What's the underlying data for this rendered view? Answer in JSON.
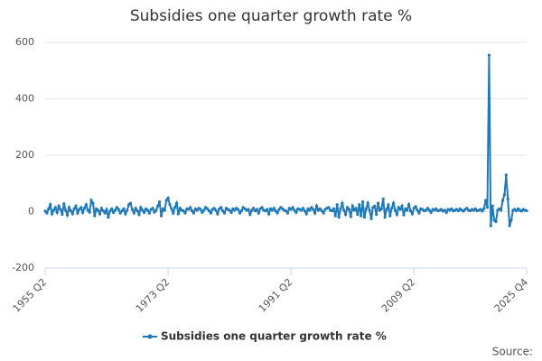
{
  "chart_data": {
    "type": "line",
    "title": "Subsidies one quarter growth rate %",
    "source": "Source:",
    "categories": [
      "1955 Q2",
      null,
      null,
      null,
      null,
      null,
      null,
      null,
      null,
      null,
      null,
      null,
      null,
      null,
      null,
      null,
      null,
      null,
      null,
      null,
      null,
      null,
      null,
      null,
      null,
      null,
      null,
      null,
      null,
      null,
      null,
      null,
      null,
      null,
      null,
      null,
      null,
      null,
      null,
      null,
      null,
      null,
      null,
      null,
      null,
      null,
      null,
      null,
      null,
      null,
      null,
      null,
      null,
      null,
      null,
      null,
      null,
      null,
      null,
      null,
      null,
      null,
      null,
      null,
      null,
      null,
      null,
      null,
      null,
      null,
      null,
      null,
      "1973 Q2",
      null,
      null,
      null,
      null,
      null,
      null,
      null,
      null,
      null,
      null,
      null,
      null,
      null,
      null,
      null,
      null,
      null,
      null,
      null,
      null,
      null,
      null,
      null,
      null,
      null,
      null,
      null,
      null,
      null,
      null,
      null,
      null,
      null,
      null,
      null,
      null,
      null,
      null,
      null,
      null,
      null,
      null,
      null,
      null,
      null,
      null,
      null,
      null,
      null,
      null,
      null,
      null,
      null,
      null,
      null,
      null,
      null,
      null,
      null,
      null,
      null,
      null,
      null,
      null,
      null,
      null,
      null,
      null,
      null,
      null,
      null,
      "1991 Q2",
      null,
      null,
      null,
      null,
      null,
      null,
      null,
      null,
      null,
      null,
      null,
      null,
      null,
      null,
      null,
      null,
      null,
      null,
      null,
      null,
      null,
      null,
      null,
      null,
      null,
      null,
      null,
      null,
      null,
      null,
      null,
      null,
      null,
      null,
      null,
      null,
      null,
      null,
      null,
      null,
      null,
      null,
      null,
      null,
      null,
      null,
      null,
      null,
      null,
      null,
      null,
      null,
      null,
      null,
      null,
      null,
      null,
      null,
      null,
      null,
      null,
      null,
      null,
      null,
      null,
      null,
      null,
      null,
      null,
      null,
      null,
      "2009 Q2",
      null,
      null,
      null,
      null,
      null,
      null,
      null,
      null,
      null,
      null,
      null,
      null,
      null,
      null,
      null,
      null,
      null,
      null,
      null,
      null,
      null,
      null,
      null,
      null,
      null,
      null,
      null,
      null,
      null,
      null,
      null,
      null,
      null,
      null,
      null,
      null,
      null,
      null,
      null,
      null,
      null,
      null,
      null,
      null,
      null,
      null,
      null,
      null,
      null,
      null,
      null,
      null,
      null,
      null,
      null,
      null,
      null,
      null,
      null,
      null,
      null,
      null,
      null,
      null,
      null,
      "2025 Q4"
    ],
    "series": [
      {
        "name": "Subsidies one quarter growth rate %",
        "color": "#1f78b8",
        "values": [
          2,
          -5,
          10,
          25,
          -8,
          5,
          15,
          -3,
          20,
          8,
          -10,
          28,
          5,
          -12,
          15,
          3,
          -8,
          10,
          20,
          -5,
          8,
          15,
          -3,
          12,
          25,
          5,
          -2,
          40,
          30,
          -15,
          10,
          5,
          -8,
          12,
          3,
          -5,
          8,
          -20,
          2,
          10,
          -3,
          5,
          15,
          8,
          -5,
          3,
          10,
          -8,
          5,
          25,
          30,
          8,
          -5,
          12,
          3,
          -10,
          15,
          5,
          -3,
          10,
          5,
          -5,
          8,
          12,
          -2,
          5,
          20,
          35,
          -15,
          10,
          5,
          40,
          48,
          25,
          10,
          -5,
          15,
          30,
          -8,
          12,
          5,
          3,
          -5,
          10,
          8,
          15,
          3,
          -5,
          10,
          5,
          12,
          8,
          -3,
          5,
          15,
          10,
          3,
          -5,
          8,
          12,
          5,
          -8,
          10,
          15,
          3,
          -5,
          12,
          8,
          5,
          -3,
          10,
          5,
          12,
          8,
          -5,
          3,
          15,
          10,
          5,
          8,
          -10,
          5,
          12,
          3,
          8,
          -5,
          10,
          15,
          5,
          3,
          8,
          -8,
          10,
          5,
          12,
          3,
          -5,
          8,
          15,
          10,
          5,
          3,
          -5,
          12,
          8,
          15,
          5,
          -3,
          10,
          8,
          5,
          12,
          3,
          -8,
          10,
          5,
          15,
          8,
          -5,
          20,
          5,
          10,
          3,
          -5,
          8,
          12,
          15,
          5,
          3,
          10,
          -15,
          25,
          -20,
          10,
          30,
          5,
          -10,
          15,
          8,
          -18,
          20,
          5,
          12,
          -10,
          25,
          -15,
          35,
          -20,
          10,
          30,
          5,
          -25,
          15,
          20,
          -10,
          30,
          5,
          10,
          45,
          -20,
          8,
          25,
          -15,
          12,
          30,
          5,
          -10,
          15,
          8,
          20,
          -12,
          10,
          5,
          25,
          3,
          -8,
          12,
          18,
          5,
          -5,
          10,
          8,
          3,
          5,
          12,
          5,
          -3,
          8,
          5,
          10,
          3,
          5,
          8,
          2,
          5,
          -3,
          8,
          5,
          10,
          3,
          5,
          8,
          3,
          10,
          5,
          2,
          8,
          12,
          5,
          3,
          8,
          5,
          10,
          3,
          5,
          8,
          2,
          10,
          40,
          15,
          555,
          -50,
          20,
          -30,
          -35,
          5,
          10,
          5,
          40,
          60,
          130,
          45,
          -50,
          -30,
          5,
          8,
          3,
          10,
          5,
          2,
          8,
          5,
          3
        ]
      }
    ],
    "ylim": [
      -200,
      600
    ],
    "yticks": [
      -200,
      0,
      200,
      400,
      600
    ],
    "grid": true
  }
}
